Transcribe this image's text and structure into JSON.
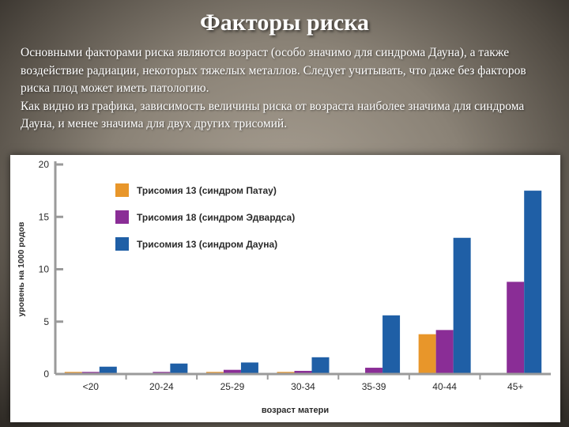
{
  "slide": {
    "title": "Факторы риска",
    "paragraph1": "Основными факторами риска являются возраст (особо значимо для синдрома Дауна), а также воздействие радиации, некоторых тяжелых металлов. Следует учитывать, что даже без факторов риска плод может иметь патологию.",
    "paragraph2": "Как видно из графика, зависимость величины риска от возраста наиболее значима для синдрома Дауна, и менее значима для двух других трисомий."
  },
  "chart_data": {
    "type": "bar",
    "categories": [
      "<20",
      "20-24",
      "25-29",
      "30-34",
      "35-39",
      "40-44",
      "45+"
    ],
    "series": [
      {
        "name": "Трисомия 13 (синдром Патау)",
        "color": "#e8962a",
        "values": [
          0.2,
          0.1,
          0.2,
          0.2,
          0.0,
          3.8,
          0.0
        ]
      },
      {
        "name": "Трисомия 18 (синдром Эдвардса)",
        "color": "#8a2d96",
        "values": [
          0.2,
          0.2,
          0.4,
          0.3,
          0.6,
          4.2,
          8.8
        ]
      },
      {
        "name": "Трисомия 13 (синдром Дауна)",
        "color": "#1f5fa6",
        "values": [
          0.7,
          1.0,
          1.1,
          1.6,
          5.6,
          13.0,
          17.5
        ]
      }
    ],
    "xlabel": "возраст матери",
    "ylabel": "уровень на 1000 родов",
    "ylim": [
      0,
      20
    ],
    "yticks": [
      0,
      5,
      10,
      15,
      20
    ],
    "legend": "top-left",
    "grid": false
  }
}
